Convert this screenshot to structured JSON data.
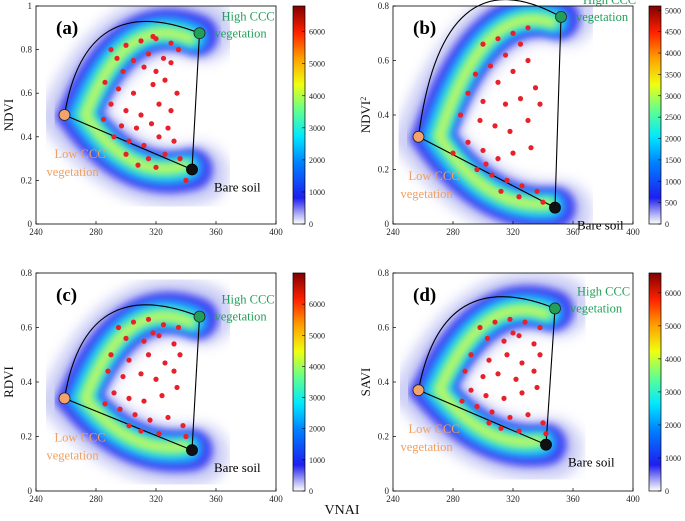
{
  "figure": {
    "shared_xlabel": "VNAI"
  },
  "colors": {
    "high_ccc": "#22a05a",
    "low_ccc": "#f4a46a",
    "bare_soil": "#111111",
    "points": "#e8202a"
  },
  "chart_data": [
    {
      "type": "scatter",
      "panel": "(a)",
      "xlabel": "",
      "ylabel": "NDVI",
      "ylabel_sup": "",
      "xlim": [
        240,
        400
      ],
      "xticks": [
        240,
        280,
        320,
        360,
        400
      ],
      "ylim": [
        0,
        1
      ],
      "yticks": [
        0,
        0.2,
        0.4,
        0.6,
        0.8,
        1
      ],
      "ytick_labels": [
        "0",
        "0.2",
        "0.4",
        "0.6",
        "0.8",
        "1"
      ],
      "colorbar": {
        "min": 0,
        "max": 6800,
        "ticks": [
          0,
          1000,
          2000,
          3000,
          4000,
          5000,
          6000
        ]
      },
      "endmembers": {
        "high": {
          "x": 349,
          "y": 0.875,
          "label_lines": [
            "High CCC",
            "vegetation"
          ]
        },
        "low": {
          "x": 259,
          "y": 0.5,
          "label_lines": [
            "Low CCC",
            "vegetation"
          ]
        },
        "soil": {
          "x": 344,
          "y": 0.25,
          "label": "Bare soil"
        }
      },
      "density": {
        "upper_y": 0.85,
        "lower_y": 0.28,
        "outer_thickness": 0.13,
        "inner_thickness": 0.05
      },
      "points": [
        [
          290,
          0.8
        ],
        [
          300,
          0.82
        ],
        [
          310,
          0.84
        ],
        [
          320,
          0.85
        ],
        [
          330,
          0.83
        ],
        [
          315,
          0.78
        ],
        [
          305,
          0.75
        ],
        [
          325,
          0.76
        ],
        [
          298,
          0.7
        ],
        [
          312,
          0.72
        ],
        [
          320,
          0.7
        ],
        [
          330,
          0.74
        ],
        [
          286,
          0.65
        ],
        [
          295,
          0.62
        ],
        [
          305,
          0.6
        ],
        [
          318,
          0.64
        ],
        [
          326,
          0.66
        ],
        [
          334,
          0.6
        ],
        [
          290,
          0.55
        ],
        [
          300,
          0.52
        ],
        [
          310,
          0.5
        ],
        [
          322,
          0.55
        ],
        [
          330,
          0.52
        ],
        [
          285,
          0.48
        ],
        [
          297,
          0.45
        ],
        [
          307,
          0.44
        ],
        [
          317,
          0.46
        ],
        [
          328,
          0.44
        ],
        [
          292,
          0.4
        ],
        [
          302,
          0.38
        ],
        [
          312,
          0.36
        ],
        [
          322,
          0.4
        ],
        [
          332,
          0.38
        ],
        [
          300,
          0.32
        ],
        [
          315,
          0.3
        ],
        [
          326,
          0.32
        ],
        [
          336,
          0.3
        ],
        [
          308,
          0.27
        ],
        [
          320,
          0.26
        ],
        [
          340,
          0.2
        ],
        [
          294,
          0.76
        ],
        [
          318,
          0.86
        ],
        [
          335,
          0.8
        ]
      ]
    },
    {
      "type": "scatter",
      "panel": "(b)",
      "xlabel": "",
      "ylabel": "NDVI",
      "ylabel_sup": "2",
      "xlim": [
        240,
        400
      ],
      "xticks": [
        240,
        280,
        320,
        360,
        400
      ],
      "ylim": [
        0,
        0.8
      ],
      "yticks": [
        0,
        0.2,
        0.4,
        0.6,
        0.8
      ],
      "ytick_labels": [
        "0",
        "0.2",
        "0.4",
        "0.6",
        "0.8"
      ],
      "colorbar": {
        "min": 0,
        "max": 5100,
        "ticks": [
          0,
          500,
          1000,
          1500,
          2000,
          2500,
          3000,
          3500,
          4000,
          4500,
          5000
        ]
      },
      "endmembers": {
        "high": {
          "x": 352,
          "y": 0.76,
          "label_lines": [
            "High CCC",
            "vegetation"
          ]
        },
        "low": {
          "x": 257,
          "y": 0.32,
          "label_lines": [
            "Low CCC",
            "vegetation"
          ]
        },
        "soil": {
          "x": 348,
          "y": 0.06,
          "label": "Bare soil"
        }
      },
      "density": {
        "upper_y": 0.72,
        "lower_y": 0.12,
        "outer_thickness": 0.11,
        "inner_thickness": 0.04
      },
      "points": [
        [
          300,
          0.66
        ],
        [
          310,
          0.68
        ],
        [
          320,
          0.7
        ],
        [
          330,
          0.72
        ],
        [
          325,
          0.66
        ],
        [
          315,
          0.62
        ],
        [
          305,
          0.58
        ],
        [
          295,
          0.55
        ],
        [
          310,
          0.52
        ],
        [
          320,
          0.56
        ],
        [
          330,
          0.6
        ],
        [
          290,
          0.48
        ],
        [
          300,
          0.45
        ],
        [
          315,
          0.44
        ],
        [
          325,
          0.46
        ],
        [
          335,
          0.5
        ],
        [
          285,
          0.4
        ],
        [
          298,
          0.38
        ],
        [
          308,
          0.36
        ],
        [
          318,
          0.34
        ],
        [
          330,
          0.38
        ],
        [
          290,
          0.3
        ],
        [
          300,
          0.27
        ],
        [
          310,
          0.24
        ],
        [
          320,
          0.26
        ],
        [
          332,
          0.28
        ],
        [
          296,
          0.2
        ],
        [
          306,
          0.18
        ],
        [
          316,
          0.16
        ],
        [
          326,
          0.14
        ],
        [
          336,
          0.12
        ],
        [
          312,
          0.12
        ],
        [
          324,
          0.1
        ],
        [
          340,
          0.08
        ],
        [
          302,
          0.22
        ],
        [
          280,
          0.26
        ],
        [
          338,
          0.44
        ]
      ]
    },
    {
      "type": "scatter",
      "panel": "(c)",
      "xlabel": "",
      "ylabel": "RDVI",
      "ylabel_sup": "",
      "xlim": [
        240,
        400
      ],
      "xticks": [
        240,
        280,
        320,
        360,
        400
      ],
      "ylim": [
        0,
        0.8
      ],
      "yticks": [
        0,
        0.2,
        0.4,
        0.6,
        0.8
      ],
      "ytick_labels": [
        "0",
        "0.2",
        "0.4",
        "0.6",
        "0.8"
      ],
      "colorbar": {
        "min": 0,
        "max": 7000,
        "ticks": [
          0,
          1000,
          2000,
          3000,
          4000,
          5000,
          6000
        ]
      },
      "endmembers": {
        "high": {
          "x": 349,
          "y": 0.64,
          "label_lines": [
            "High CCC",
            "vegetation"
          ]
        },
        "low": {
          "x": 259,
          "y": 0.34,
          "label_lines": [
            "Low CCC",
            "vegetation"
          ]
        },
        "soil": {
          "x": 344,
          "y": 0.15,
          "label": "Bare soil"
        }
      },
      "density": {
        "upper_y": 0.62,
        "lower_y": 0.2,
        "outer_thickness": 0.1,
        "inner_thickness": 0.04
      },
      "points": [
        [
          295,
          0.6
        ],
        [
          305,
          0.62
        ],
        [
          315,
          0.63
        ],
        [
          325,
          0.61
        ],
        [
          335,
          0.6
        ],
        [
          300,
          0.56
        ],
        [
          312,
          0.55
        ],
        [
          322,
          0.57
        ],
        [
          332,
          0.54
        ],
        [
          290,
          0.5
        ],
        [
          302,
          0.48
        ],
        [
          315,
          0.5
        ],
        [
          326,
          0.47
        ],
        [
          336,
          0.5
        ],
        [
          288,
          0.44
        ],
        [
          298,
          0.42
        ],
        [
          310,
          0.43
        ],
        [
          320,
          0.41
        ],
        [
          332,
          0.44
        ],
        [
          292,
          0.36
        ],
        [
          302,
          0.34
        ],
        [
          312,
          0.33
        ],
        [
          324,
          0.35
        ],
        [
          334,
          0.38
        ],
        [
          296,
          0.3
        ],
        [
          306,
          0.28
        ],
        [
          316,
          0.26
        ],
        [
          328,
          0.27
        ],
        [
          338,
          0.24
        ],
        [
          310,
          0.22
        ],
        [
          322,
          0.21
        ],
        [
          302,
          0.24
        ],
        [
          340,
          0.2
        ],
        [
          286,
          0.32
        ],
        [
          318,
          0.58
        ]
      ]
    },
    {
      "type": "scatter",
      "panel": "(d)",
      "xlabel": "",
      "ylabel": "SAVI",
      "ylabel_sup": "",
      "xlim": [
        240,
        400
      ],
      "xticks": [
        240,
        280,
        320,
        360,
        400
      ],
      "ylim": [
        0,
        0.8
      ],
      "yticks": [
        0,
        0.2,
        0.4,
        0.6,
        0.8
      ],
      "ytick_labels": [
        "0",
        "0.2",
        "0.4",
        "0.6",
        "0.8"
      ],
      "colorbar": {
        "min": 0,
        "max": 6600,
        "ticks": [
          0,
          1000,
          2000,
          3000,
          4000,
          5000,
          6000
        ]
      },
      "endmembers": {
        "high": {
          "x": 348,
          "y": 0.67,
          "label_lines": [
            "High CCC",
            "vegetation"
          ]
        },
        "low": {
          "x": 257,
          "y": 0.37,
          "label_lines": [
            "Low CCC",
            "vegetation"
          ]
        },
        "soil": {
          "x": 342,
          "y": 0.17,
          "label": "Bare soil"
        }
      },
      "density": {
        "upper_y": 0.63,
        "lower_y": 0.22,
        "outer_thickness": 0.1,
        "inner_thickness": 0.04
      },
      "points": [
        [
          298,
          0.6
        ],
        [
          308,
          0.62
        ],
        [
          318,
          0.63
        ],
        [
          328,
          0.62
        ],
        [
          338,
          0.6
        ],
        [
          303,
          0.56
        ],
        [
          314,
          0.55
        ],
        [
          324,
          0.57
        ],
        [
          334,
          0.54
        ],
        [
          292,
          0.5
        ],
        [
          304,
          0.48
        ],
        [
          316,
          0.5
        ],
        [
          326,
          0.47
        ],
        [
          338,
          0.5
        ],
        [
          288,
          0.44
        ],
        [
          300,
          0.42
        ],
        [
          310,
          0.43
        ],
        [
          322,
          0.41
        ],
        [
          334,
          0.44
        ],
        [
          292,
          0.37
        ],
        [
          302,
          0.35
        ],
        [
          314,
          0.34
        ],
        [
          326,
          0.36
        ],
        [
          336,
          0.38
        ],
        [
          296,
          0.31
        ],
        [
          306,
          0.29
        ],
        [
          318,
          0.27
        ],
        [
          330,
          0.28
        ],
        [
          340,
          0.25
        ],
        [
          312,
          0.23
        ],
        [
          324,
          0.22
        ],
        [
          304,
          0.25
        ],
        [
          342,
          0.21
        ],
        [
          286,
          0.33
        ],
        [
          320,
          0.58
        ]
      ]
    }
  ]
}
